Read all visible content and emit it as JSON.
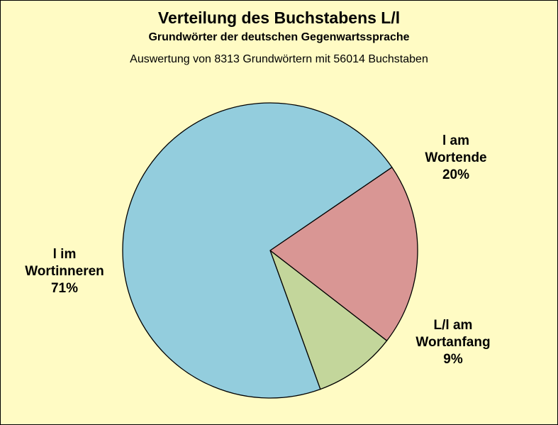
{
  "chart_data": {
    "type": "pie",
    "title": "Verteilung des Buchstabens L/l",
    "subtitle": "Grundwörter der deutschen Gegenwartssprache",
    "note": "Auswertung von 8313 Grundwörtern mit 56014 Buchstaben",
    "background_color": "#fffbc4",
    "slices": [
      {
        "label_lines": [
          "l am",
          "Wortende",
          "20%"
        ],
        "value": 20,
        "color": "#d99694"
      },
      {
        "label_lines": [
          "L/l am",
          "Wortanfang",
          "9%"
        ],
        "value": 9,
        "color": "#c3d69b"
      },
      {
        "label_lines": [
          "l im",
          "Wortinneren",
          "71%"
        ],
        "value": 71,
        "color": "#93cddd"
      }
    ]
  }
}
